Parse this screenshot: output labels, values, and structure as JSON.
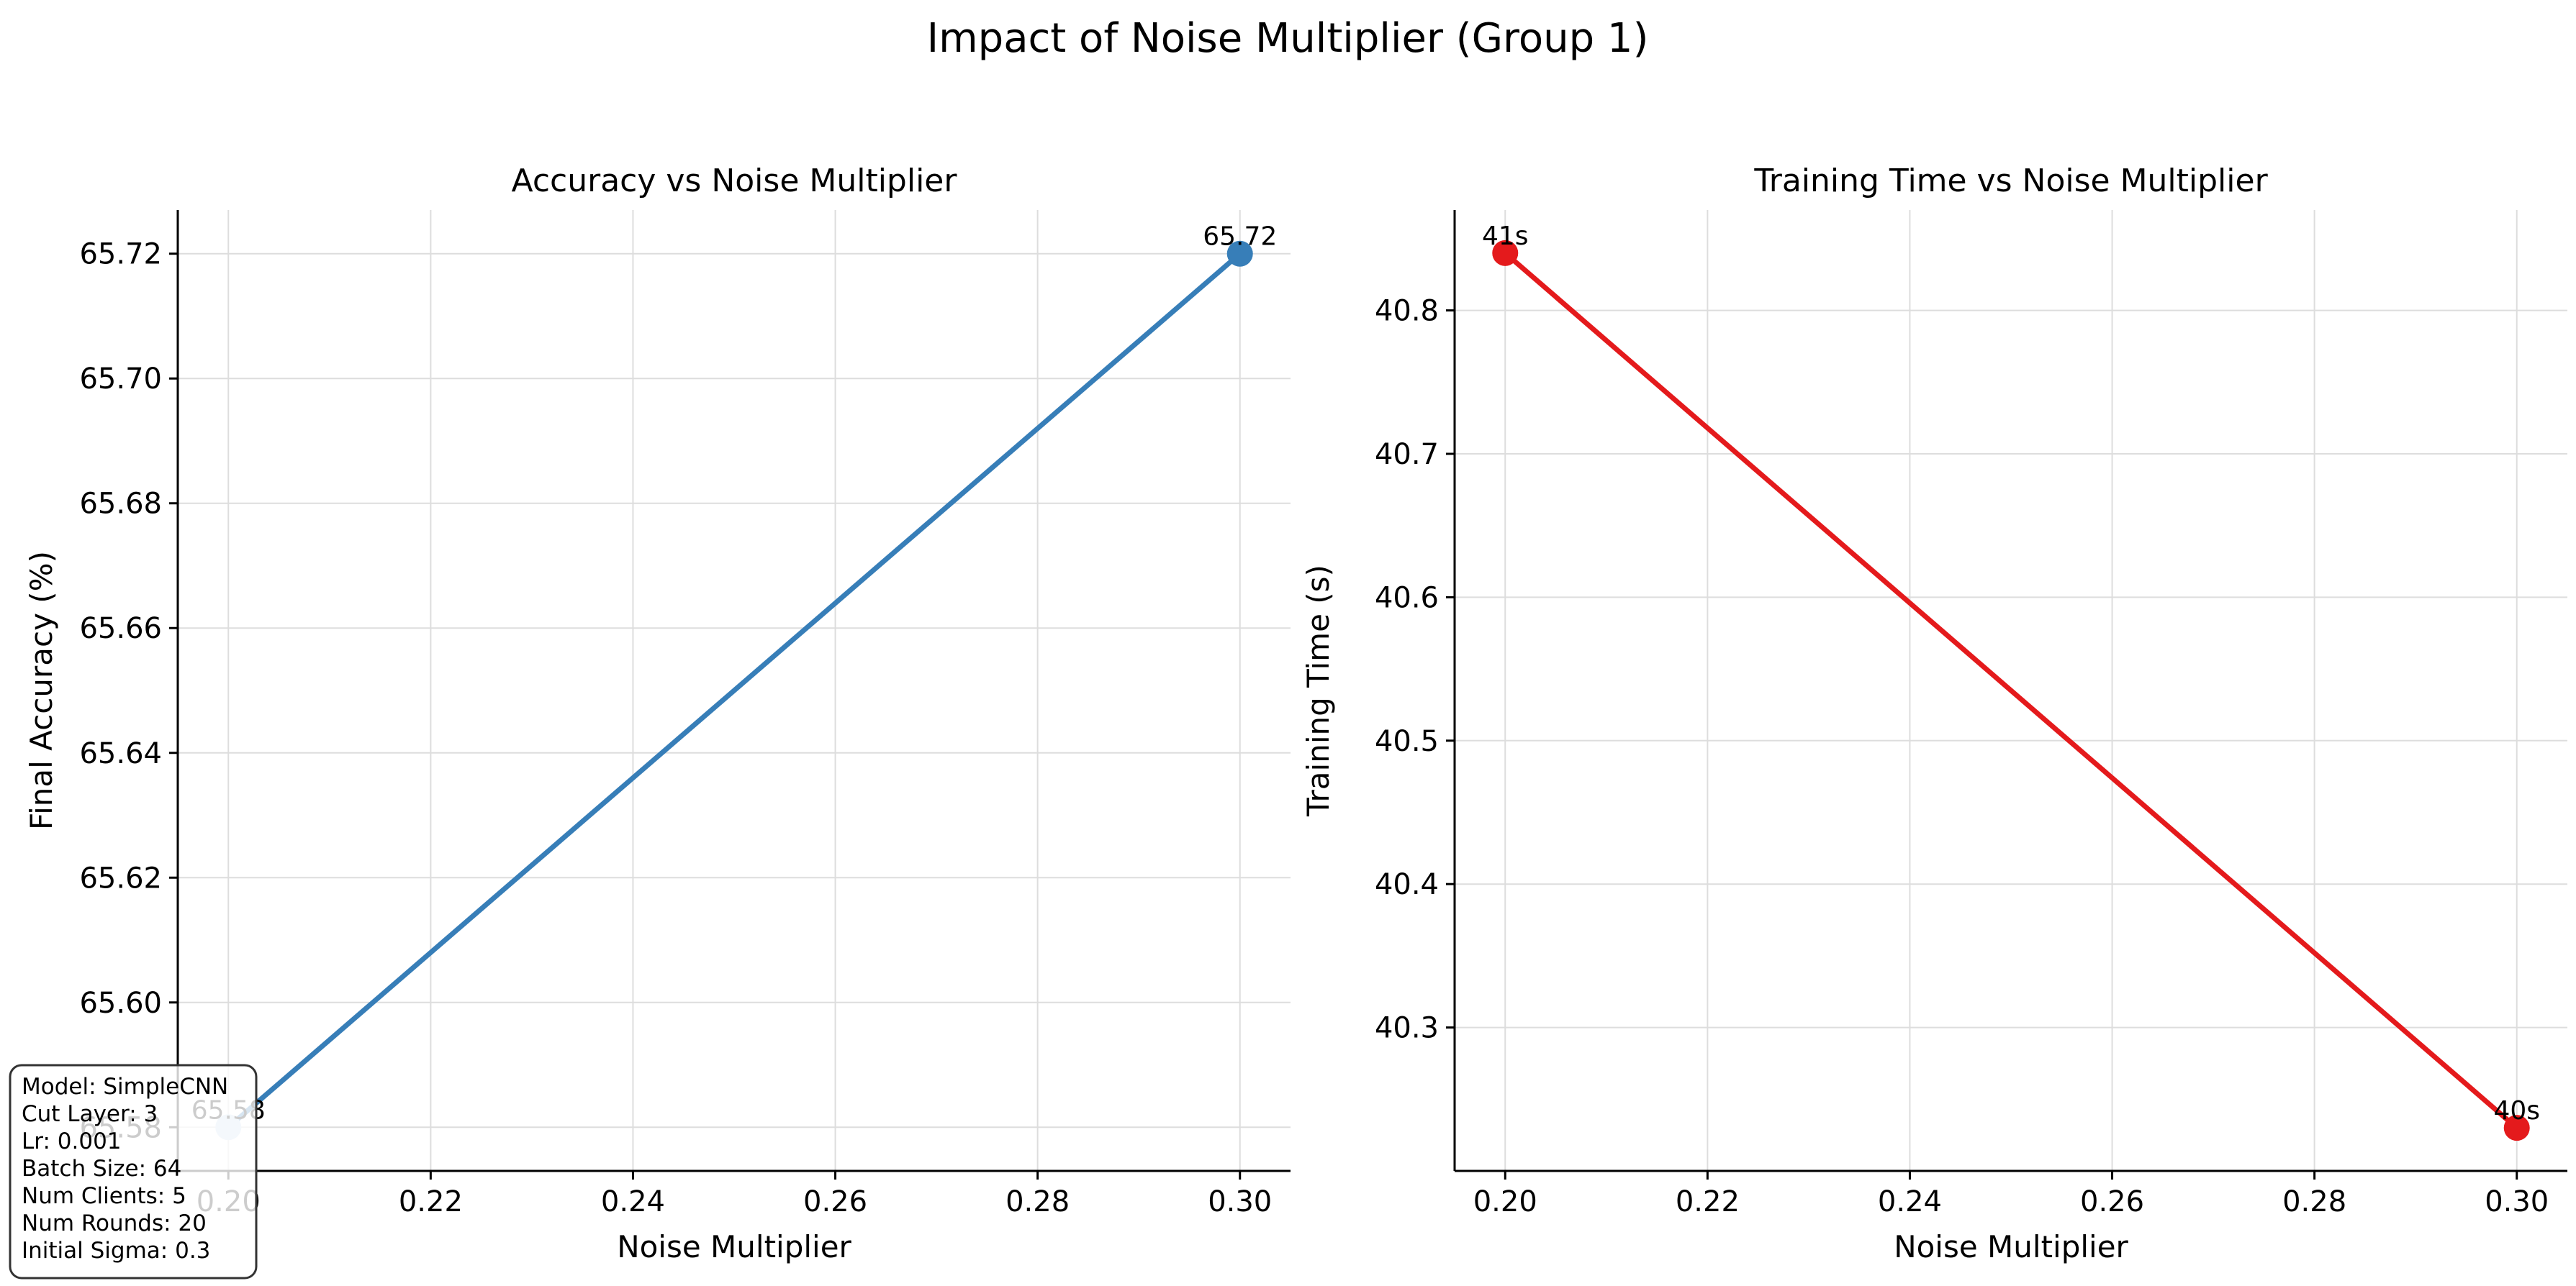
{
  "figure": {
    "title": "Impact of Noise Multiplier (Group 1)"
  },
  "chart_data": [
    {
      "type": "line",
      "title": "Accuracy vs Noise Multiplier",
      "xlabel": "Noise Multiplier",
      "ylabel": "Final Accuracy (%)",
      "x": [
        0.2,
        0.3
      ],
      "series": [
        {
          "values": [
            65.58,
            65.72
          ],
          "color": "#377eb8",
          "point_colors": [
            "#c6dbef",
            "#377eb8"
          ]
        }
      ],
      "data_labels": [
        "65.58",
        "65.72"
      ],
      "xlim": [
        0.195,
        0.305
      ],
      "ylim": [
        65.573,
        65.727
      ],
      "xticks": [
        0.2,
        0.22,
        0.24,
        0.26,
        0.28,
        0.3
      ],
      "xtick_labels": [
        "0.20",
        "0.22",
        "0.24",
        "0.26",
        "0.28",
        "0.30"
      ],
      "yticks": [
        65.58,
        65.6,
        65.62,
        65.64,
        65.66,
        65.68,
        65.7,
        65.72
      ],
      "ytick_labels": [
        "65.58",
        "65.60",
        "65.62",
        "65.64",
        "65.66",
        "65.68",
        "65.70",
        "65.72"
      ],
      "grid": true,
      "legend": "none"
    },
    {
      "type": "line",
      "title": "Training Time vs Noise Multiplier",
      "xlabel": "Noise Multiplier",
      "ylabel": "Training Time (s)",
      "x": [
        0.2,
        0.3
      ],
      "series": [
        {
          "values": [
            40.84,
            40.23
          ],
          "color": "#e41a1c",
          "point_colors": [
            "#e41a1c",
            "#e41a1c"
          ]
        }
      ],
      "data_labels": [
        "41s",
        "40s"
      ],
      "xlim": [
        0.195,
        0.305
      ],
      "ylim": [
        40.2,
        40.87
      ],
      "xticks": [
        0.2,
        0.22,
        0.24,
        0.26,
        0.28,
        0.3
      ],
      "xtick_labels": [
        "0.20",
        "0.22",
        "0.24",
        "0.26",
        "0.28",
        "0.30"
      ],
      "yticks": [
        40.3,
        40.4,
        40.5,
        40.6,
        40.7,
        40.8
      ],
      "ytick_labels": [
        "40.3",
        "40.4",
        "40.5",
        "40.6",
        "40.7",
        "40.8"
      ],
      "grid": true,
      "legend": "none"
    }
  ],
  "info_box": {
    "lines": [
      "Model: SimpleCNN",
      "Cut Layer: 3",
      "Lr: 0.001",
      "Batch Size: 64",
      "Num Clients: 5",
      "Num Rounds: 20",
      "Initial Sigma: 0.3"
    ]
  }
}
